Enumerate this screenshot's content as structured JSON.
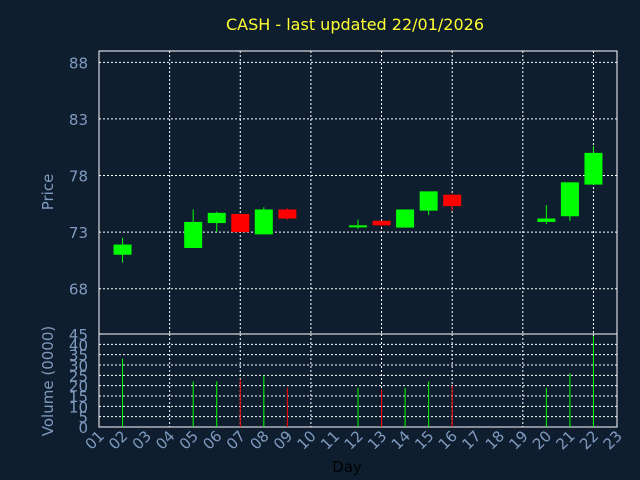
{
  "chart_data": {
    "type": "candlestick",
    "title": "CASH - last updated 22/01/2026",
    "xlabel": "Day",
    "price_ylabel": "Price",
    "volume_ylabel": "Volume (0000)",
    "price_ylim": [
      64,
      89
    ],
    "price_ticks": [
      "88",
      "83",
      "78",
      "73",
      "68"
    ],
    "price_tick_values": [
      88,
      83,
      78,
      73,
      68
    ],
    "volume_ylim": [
      0,
      45
    ],
    "volume_ticks": [
      "45",
      "40",
      "35",
      "30",
      "25",
      "20",
      "15",
      "10",
      "5",
      "0"
    ],
    "volume_tick_values": [
      45,
      40,
      35,
      30,
      25,
      20,
      15,
      10,
      5,
      0
    ],
    "x_ticks": [
      "01",
      "02",
      "03",
      "04",
      "05",
      "06",
      "07",
      "08",
      "09",
      "10",
      "11",
      "12",
      "13",
      "14",
      "15",
      "16",
      "17",
      "18",
      "19",
      "20",
      "21",
      "22",
      "23"
    ],
    "grid": true,
    "colors": {
      "background": "#0f1e2f",
      "title": "#ffff33",
      "axis_text": "#7f9bbf",
      "grid": "#ffffff",
      "up": "#00ff00",
      "down": "#ff0000",
      "plot_border": "#ffffff"
    },
    "candles": [
      {
        "day": 2,
        "open": 71.0,
        "high": 72.5,
        "low": 70.3,
        "close": 71.9,
        "volume": 33
      },
      {
        "day": 5,
        "open": 71.6,
        "high": 75.0,
        "low": 71.6,
        "close": 73.9,
        "volume": 22
      },
      {
        "day": 6,
        "open": 73.8,
        "high": 74.8,
        "low": 73.0,
        "close": 74.7,
        "volume": 22
      },
      {
        "day": 7,
        "open": 74.6,
        "high": 74.6,
        "low": 73.0,
        "close": 73.0,
        "volume": 23
      },
      {
        "day": 8,
        "open": 72.8,
        "high": 75.2,
        "low": 72.8,
        "close": 75.0,
        "volume": 25
      },
      {
        "day": 9,
        "open": 75.0,
        "high": 75.1,
        "low": 74.1,
        "close": 74.2,
        "volume": 19
      },
      {
        "day": 12,
        "open": 73.5,
        "high": 74.1,
        "low": 73.3,
        "close": 73.6,
        "volume": 19
      },
      {
        "day": 13,
        "open": 74.0,
        "high": 74.0,
        "low": 73.5,
        "close": 73.6,
        "volume": 18
      },
      {
        "day": 14,
        "open": 73.4,
        "high": 75.0,
        "low": 73.4,
        "close": 75.0,
        "volume": 19
      },
      {
        "day": 15,
        "open": 74.9,
        "high": 76.6,
        "low": 74.5,
        "close": 76.6,
        "volume": 22
      },
      {
        "day": 16,
        "open": 76.3,
        "high": 76.4,
        "low": 74.9,
        "close": 75.3,
        "volume": 20
      },
      {
        "day": 20,
        "open": 73.9,
        "high": 75.4,
        "low": 73.7,
        "close": 74.2,
        "volume": 19
      },
      {
        "day": 21,
        "open": 74.4,
        "high": 77.4,
        "low": 74.0,
        "close": 77.4,
        "volume": 26
      },
      {
        "day": 22,
        "open": 77.2,
        "high": 80.6,
        "low": 77.2,
        "close": 80.0,
        "volume": 44
      }
    ]
  }
}
